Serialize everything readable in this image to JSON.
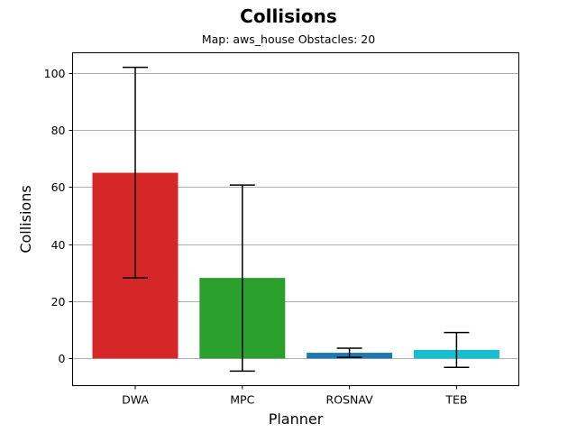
{
  "chart_data": {
    "type": "bar",
    "title": "Collisions",
    "subtitle": "Map: aws_house Obstacles: 20",
    "xlabel": "Planner",
    "ylabel": "Collisions",
    "categories": [
      "DWA",
      "MPC",
      "ROSNAV",
      "TEB"
    ],
    "values": [
      65,
      28.2,
      2,
      3
    ],
    "error_low": [
      28.2,
      -4.4,
      0.4,
      -3.1
    ],
    "error_high": [
      101.9,
      60.7,
      3.6,
      9.1
    ],
    "colors": [
      "#d62728",
      "#2ca02c",
      "#1f77b4",
      "#17becf"
    ],
    "ylim": [
      -9.5,
      107
    ],
    "yticks": [
      0,
      20,
      40,
      60,
      80,
      100
    ],
    "grid": "horizontal"
  }
}
